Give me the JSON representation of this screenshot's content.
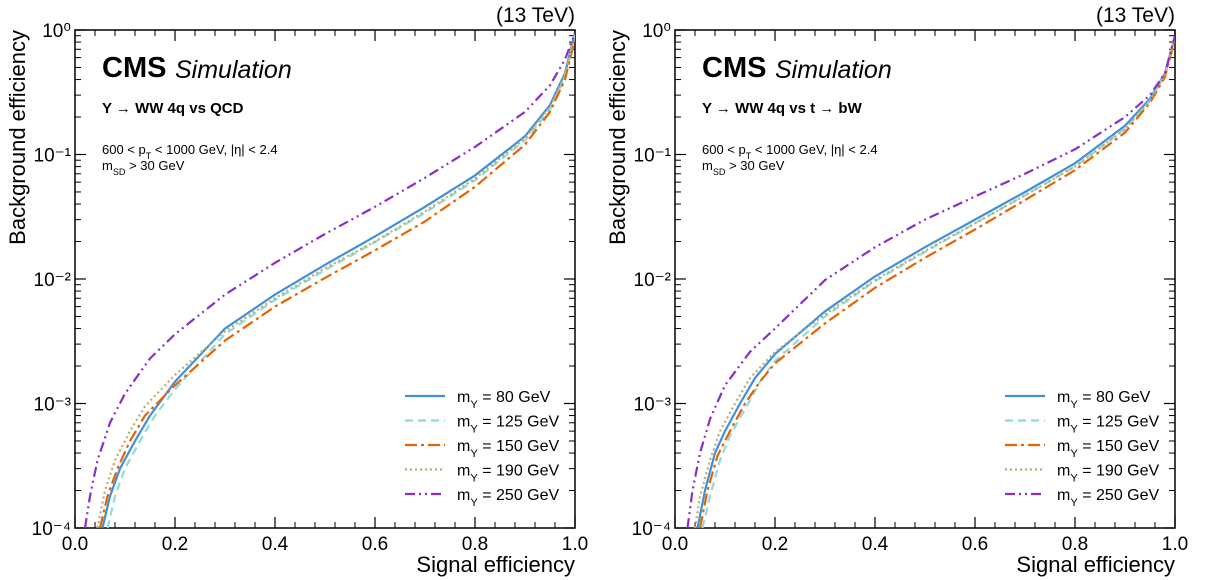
{
  "chart_data": [
    {
      "type": "line",
      "energy_label": "(13 TeV)",
      "cms_label": "CMS",
      "sim_label": "Simulation",
      "process_label": "Y → WW 4q vs QCD",
      "cut_line1": "600 < pT < 1000 GeV, |η| < 2.4",
      "cut_line2": "mSD > 30 GeV",
      "xlabel": "Signal efficiency",
      "ylabel": "Background efficiency",
      "xlim": [
        0,
        1
      ],
      "ylim": [
        0.0001,
        1
      ],
      "yscale": "log",
      "x_ticks": [
        "0.0",
        "0.2",
        "0.4",
        "0.6",
        "0.8",
        "1.0"
      ],
      "y_ticks": [
        "10⁻⁴",
        "10⁻³",
        "10⁻²",
        "10⁻¹",
        "10⁰"
      ],
      "legend_position": "bottom-right",
      "series": [
        {
          "name": "mY = 80 GeV",
          "color": "#3f90da",
          "style": "solid",
          "x": [
            0.055,
            0.07,
            0.09,
            0.12,
            0.15,
            0.2,
            0.3,
            0.4,
            0.5,
            0.6,
            0.7,
            0.8,
            0.9,
            0.95,
            0.98,
            1.0
          ],
          "y": [
            0.0001,
            0.00018,
            0.0003,
            0.0005,
            0.0008,
            0.0015,
            0.004,
            0.0075,
            0.013,
            0.022,
            0.038,
            0.068,
            0.14,
            0.25,
            0.45,
            0.95
          ]
        },
        {
          "name": "mY = 125 GeV",
          "color": "#92dadd",
          "style": "dashed",
          "x": [
            0.065,
            0.08,
            0.1,
            0.13,
            0.16,
            0.2,
            0.3,
            0.4,
            0.5,
            0.6,
            0.7,
            0.8,
            0.9,
            0.95,
            0.98,
            1.0
          ],
          "y": [
            0.0001,
            0.00018,
            0.0003,
            0.0005,
            0.0008,
            0.0013,
            0.0036,
            0.0068,
            0.0118,
            0.0198,
            0.034,
            0.062,
            0.13,
            0.23,
            0.42,
            0.9
          ]
        },
        {
          "name": "mY = 150 GeV",
          "color": "#e76300",
          "style": "dashdot",
          "x": [
            0.05,
            0.065,
            0.085,
            0.11,
            0.14,
            0.2,
            0.3,
            0.4,
            0.5,
            0.6,
            0.7,
            0.8,
            0.9,
            0.95,
            0.98,
            1.0
          ],
          "y": [
            0.0001,
            0.00018,
            0.0003,
            0.0005,
            0.0008,
            0.0014,
            0.0032,
            0.006,
            0.0102,
            0.017,
            0.029,
            0.055,
            0.12,
            0.22,
            0.4,
            0.85
          ]
        },
        {
          "name": "mY = 190 GeV",
          "color": "#b9ac70",
          "style": "dotted",
          "x": [
            0.045,
            0.06,
            0.08,
            0.11,
            0.14,
            0.2,
            0.3,
            0.4,
            0.5,
            0.6,
            0.7,
            0.8,
            0.9,
            0.95,
            0.98,
            1.0
          ],
          "y": [
            0.0001,
            0.0002,
            0.00035,
            0.0006,
            0.00095,
            0.0017,
            0.0038,
            0.007,
            0.0122,
            0.02,
            0.035,
            0.064,
            0.135,
            0.24,
            0.44,
            0.92
          ]
        },
        {
          "name": "mY = 250 GeV",
          "color": "#8a2dcc",
          "style": "dashdotdot",
          "x": [
            0.02,
            0.03,
            0.045,
            0.07,
            0.1,
            0.15,
            0.2,
            0.3,
            0.4,
            0.5,
            0.6,
            0.7,
            0.8,
            0.9,
            0.95,
            0.98,
            1.0
          ],
          "y": [
            0.0001,
            0.00018,
            0.00035,
            0.0007,
            0.0012,
            0.0023,
            0.0036,
            0.0075,
            0.0135,
            0.023,
            0.038,
            0.065,
            0.115,
            0.22,
            0.36,
            0.58,
            0.95
          ]
        }
      ]
    },
    {
      "type": "line",
      "energy_label": "(13 TeV)",
      "cms_label": "CMS",
      "sim_label": "Simulation",
      "process_label": "Y → WW 4q vs t → bW",
      "cut_line1": "600 < pT < 1000 GeV, |η| < 2.4",
      "cut_line2": "mSD > 30 GeV",
      "xlabel": "Signal efficiency",
      "ylabel": "Background efficiency",
      "xlim": [
        0,
        1
      ],
      "ylim": [
        0.0001,
        1
      ],
      "yscale": "log",
      "x_ticks": [
        "0.0",
        "0.2",
        "0.4",
        "0.6",
        "0.8",
        "1.0"
      ],
      "y_ticks": [
        "10⁻⁴",
        "10⁻³",
        "10⁻²",
        "10⁻¹",
        "10⁰"
      ],
      "legend_position": "bottom-right",
      "series": [
        {
          "name": "mY = 80 GeV",
          "color": "#3f90da",
          "style": "solid",
          "x": [
            0.045,
            0.06,
            0.08,
            0.1,
            0.13,
            0.16,
            0.2,
            0.3,
            0.4,
            0.5,
            0.6,
            0.7,
            0.8,
            0.9,
            0.95,
            0.98,
            1.0
          ],
          "y": [
            0.0001,
            0.0002,
            0.0004,
            0.0006,
            0.001,
            0.0016,
            0.0025,
            0.0055,
            0.0105,
            0.018,
            0.03,
            0.05,
            0.085,
            0.17,
            0.28,
            0.45,
            0.9
          ]
        },
        {
          "name": "mY = 125 GeV",
          "color": "#92dadd",
          "style": "dashed",
          "x": [
            0.055,
            0.07,
            0.09,
            0.11,
            0.14,
            0.17,
            0.2,
            0.3,
            0.4,
            0.5,
            0.6,
            0.7,
            0.8,
            0.9,
            0.95,
            0.98,
            1.0
          ],
          "y": [
            0.0001,
            0.00018,
            0.00035,
            0.00055,
            0.0009,
            0.0015,
            0.0022,
            0.005,
            0.0096,
            0.0165,
            0.028,
            0.047,
            0.08,
            0.16,
            0.27,
            0.44,
            0.88
          ]
        },
        {
          "name": "mY = 150 GeV",
          "color": "#e76300",
          "style": "dashdot",
          "x": [
            0.05,
            0.065,
            0.085,
            0.11,
            0.14,
            0.17,
            0.2,
            0.3,
            0.4,
            0.5,
            0.6,
            0.7,
            0.8,
            0.9,
            0.95,
            0.98,
            1.0
          ],
          "y": [
            0.0001,
            0.0002,
            0.00038,
            0.0006,
            0.001,
            0.0015,
            0.0021,
            0.0044,
            0.0085,
            0.0148,
            0.025,
            0.043,
            0.075,
            0.15,
            0.26,
            0.42,
            0.85
          ]
        },
        {
          "name": "mY = 190 GeV",
          "color": "#b9ac70",
          "style": "dotted",
          "x": [
            0.04,
            0.05,
            0.07,
            0.09,
            0.12,
            0.15,
            0.2,
            0.3,
            0.4,
            0.5,
            0.6,
            0.7,
            0.8,
            0.9,
            0.95,
            0.98,
            1.0
          ],
          "y": [
            0.0001,
            0.00018,
            0.00035,
            0.0006,
            0.001,
            0.0016,
            0.0026,
            0.0052,
            0.0098,
            0.0168,
            0.028,
            0.047,
            0.08,
            0.16,
            0.27,
            0.44,
            0.88
          ]
        },
        {
          "name": "mY = 250 GeV",
          "color": "#8a2dcc",
          "style": "dashdotdot",
          "x": [
            0.025,
            0.035,
            0.05,
            0.07,
            0.1,
            0.15,
            0.2,
            0.3,
            0.4,
            0.5,
            0.6,
            0.7,
            0.8,
            0.9,
            0.95,
            0.98,
            1.0
          ],
          "y": [
            0.0001,
            0.0002,
            0.0004,
            0.00075,
            0.0014,
            0.0026,
            0.004,
            0.0098,
            0.018,
            0.03,
            0.046,
            0.07,
            0.11,
            0.2,
            0.3,
            0.45,
            0.9
          ]
        }
      ]
    }
  ]
}
